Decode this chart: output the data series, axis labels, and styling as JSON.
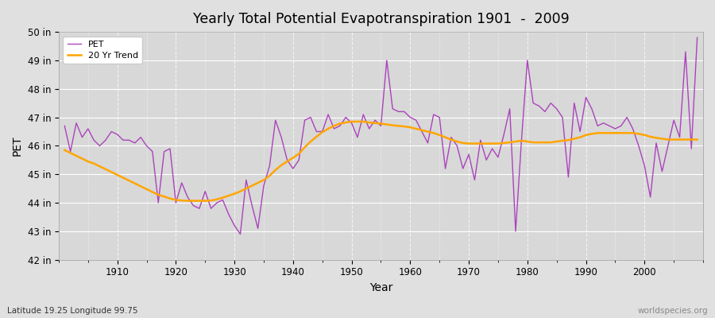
{
  "title": "Yearly Total Potential Evapotranspiration 1901  -  2009",
  "xlabel": "Year",
  "ylabel": "PET",
  "subtitle_left": "Latitude 19.25 Longitude 99.75",
  "subtitle_right": "worldspecies.org",
  "pet_color": "#AA44BB",
  "trend_color": "#FFA500",
  "background_color": "#E0E0E0",
  "plot_bg_color": "#D8D8D8",
  "ylim": [
    42,
    50
  ],
  "yticks": [
    42,
    43,
    44,
    45,
    46,
    47,
    48,
    49,
    50
  ],
  "ytick_labels": [
    "42 in",
    "43 in",
    "44 in",
    "45 in",
    "46 in",
    "47 in",
    "48 in",
    "49 in",
    "50 in"
  ],
  "xticks": [
    1910,
    1920,
    1930,
    1940,
    1950,
    1960,
    1970,
    1980,
    1990,
    2000
  ],
  "years": [
    1901,
    1902,
    1903,
    1904,
    1905,
    1906,
    1907,
    1908,
    1909,
    1910,
    1911,
    1912,
    1913,
    1914,
    1915,
    1916,
    1917,
    1918,
    1919,
    1920,
    1921,
    1922,
    1923,
    1924,
    1925,
    1926,
    1927,
    1928,
    1929,
    1930,
    1931,
    1932,
    1933,
    1934,
    1935,
    1936,
    1937,
    1938,
    1939,
    1940,
    1941,
    1942,
    1943,
    1944,
    1945,
    1946,
    1947,
    1948,
    1949,
    1950,
    1951,
    1952,
    1953,
    1954,
    1955,
    1956,
    1957,
    1958,
    1959,
    1960,
    1961,
    1962,
    1963,
    1964,
    1965,
    1966,
    1967,
    1968,
    1969,
    1970,
    1971,
    1972,
    1973,
    1974,
    1975,
    1976,
    1977,
    1978,
    1979,
    1980,
    1981,
    1982,
    1983,
    1984,
    1985,
    1986,
    1987,
    1988,
    1989,
    1990,
    1991,
    1992,
    1993,
    1994,
    1995,
    1996,
    1997,
    1998,
    1999,
    2000,
    2001,
    2002,
    2003,
    2004,
    2005,
    2006,
    2007,
    2008,
    2009
  ],
  "pet": [
    46.7,
    45.8,
    46.8,
    46.3,
    46.6,
    46.2,
    46.0,
    46.2,
    46.5,
    46.4,
    46.2,
    46.2,
    46.1,
    46.3,
    46.0,
    45.8,
    44.0,
    45.8,
    45.9,
    44.0,
    44.7,
    44.2,
    43.9,
    43.8,
    44.4,
    43.8,
    44.0,
    44.1,
    43.6,
    43.2,
    42.9,
    44.8,
    43.9,
    43.1,
    44.6,
    45.3,
    46.9,
    46.3,
    45.5,
    45.2,
    45.5,
    46.9,
    47.0,
    46.5,
    46.5,
    47.1,
    46.6,
    46.7,
    47.0,
    46.8,
    46.3,
    47.1,
    46.6,
    46.9,
    46.7,
    49.0,
    47.3,
    47.2,
    47.2,
    47.0,
    46.9,
    46.5,
    46.1,
    47.1,
    47.0,
    45.2,
    46.3,
    46.0,
    45.2,
    45.7,
    44.8,
    46.2,
    45.5,
    45.9,
    45.6,
    46.4,
    47.3,
    43.0,
    46.2,
    49.0,
    47.5,
    47.4,
    47.2,
    47.5,
    47.3,
    47.0,
    44.9,
    47.5,
    46.5,
    47.7,
    47.3,
    46.7,
    46.8,
    46.7,
    46.6,
    46.7,
    47.0,
    46.6,
    46.0,
    45.3,
    44.2,
    46.1,
    45.1,
    46.0,
    46.9,
    46.3,
    49.3,
    45.9,
    49.8
  ],
  "trend": [
    45.85,
    45.75,
    45.65,
    45.55,
    45.45,
    45.38,
    45.28,
    45.18,
    45.08,
    44.98,
    44.88,
    44.78,
    44.68,
    44.58,
    44.48,
    44.38,
    44.28,
    44.22,
    44.15,
    44.1,
    44.08,
    44.07,
    44.07,
    44.07,
    44.07,
    44.08,
    44.12,
    44.18,
    44.25,
    44.32,
    44.4,
    44.5,
    44.6,
    44.7,
    44.8,
    44.95,
    45.15,
    45.32,
    45.45,
    45.58,
    45.72,
    45.95,
    46.15,
    46.32,
    46.48,
    46.6,
    46.7,
    46.78,
    46.82,
    46.85,
    46.85,
    46.85,
    46.82,
    46.8,
    46.78,
    46.75,
    46.72,
    46.7,
    46.68,
    46.65,
    46.6,
    46.55,
    46.5,
    46.45,
    46.38,
    46.3,
    46.22,
    46.15,
    46.1,
    46.08,
    46.08,
    46.08,
    46.08,
    46.08,
    46.08,
    46.1,
    46.12,
    46.15,
    46.18,
    46.15,
    46.12,
    46.12,
    46.12,
    46.12,
    46.15,
    46.18,
    46.2,
    46.25,
    46.3,
    46.38,
    46.42,
    46.45,
    46.45,
    46.45,
    46.45,
    46.45,
    46.45,
    46.45,
    46.42,
    46.38,
    46.32,
    46.28,
    46.25,
    46.22,
    46.22,
    46.22,
    46.22,
    46.22,
    46.22
  ]
}
